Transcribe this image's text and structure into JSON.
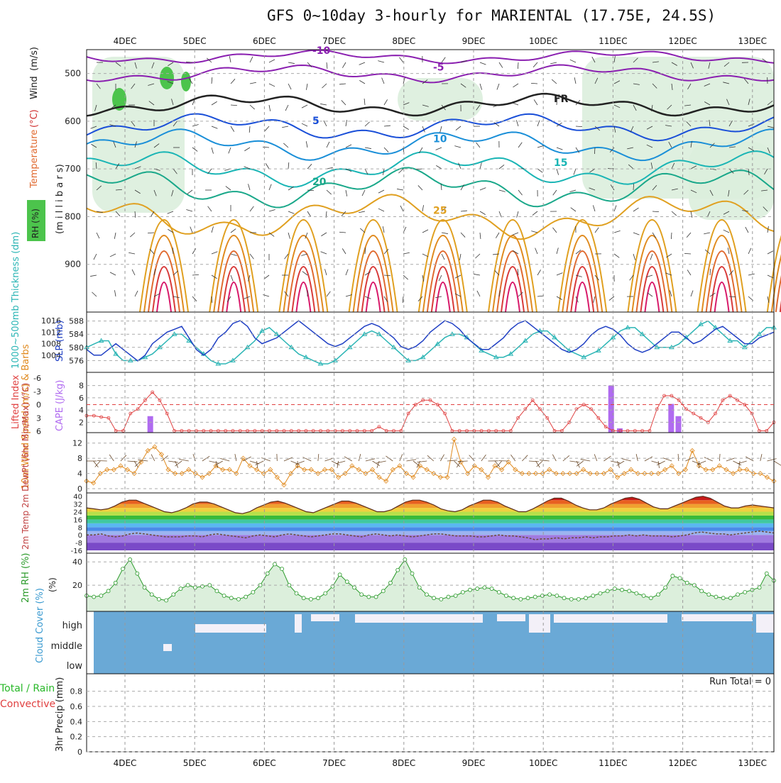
{
  "title": "GFS 0~10day 3-hourly for MARIENTAL (17.75E, 24.5S)",
  "colors": {
    "rh_fill": "#4cc44c",
    "temp_warm": "#e08a1e",
    "temp_cool": "#1a5bd8",
    "thickness": "#2bb5b5",
    "slp": "#1f3fc4",
    "lifted_index": "#e04040",
    "cape": "#b06bf0",
    "wind": "#e08a1e",
    "rh2m": "#2a9a2a",
    "cloud": "#6aa9d6",
    "precip_total": "#29b829",
    "precip_conv": "#e04040"
  },
  "chart_data": [
    {
      "type": "line",
      "name": "upper-air",
      "ylabel_parts": [
        "Temperature",
        "(°C)",
        "Wind",
        "(m/s)"
      ],
      "ylabel2": "(m i l l i b a r s)",
      "rh_label": "RH (%)",
      "categories": [
        "4DEC",
        "5DEC",
        "6DEC",
        "7DEC",
        "8DEC",
        "9DEC",
        "10DEC",
        "11DEC",
        "12DEC",
        "13DEC"
      ],
      "yticks": [
        500,
        600,
        700,
        800,
        900
      ],
      "yticklabels": [
        "500",
        "600",
        "700",
        "800",
        "900"
      ],
      "ylim": [
        1000,
        450
      ],
      "contours": [
        {
          "label": "-10",
          "pressure": 465,
          "color": "#8a1fb0"
        },
        {
          "label": "-5",
          "pressure": 500,
          "color": "#8a1fb0"
        },
        {
          "label": "FR",
          "pressure": 566,
          "color": "#222222"
        },
        {
          "label": "5",
          "pressure": 612,
          "color": "#1a4fd8"
        },
        {
          "label": "10",
          "pressure": 650,
          "color": "#1a8fd8"
        },
        {
          "label": "15",
          "pressure": 700,
          "color": "#1ab5b5"
        },
        {
          "label": "20",
          "pressure": 740,
          "color": "#1aa88a"
        },
        {
          "label": "25",
          "pressure": 800,
          "color": "#e0a020"
        }
      ]
    },
    {
      "type": "line",
      "name": "thickness-slp",
      "ylabel_left": "1000~500mb Thickness (dm)",
      "ylabel_right": "SLP (mb)",
      "yticks_left": [
        "588",
        "584",
        "580",
        "576"
      ],
      "yticks_right": [
        "1016",
        "1012",
        "1008",
        "1004"
      ],
      "series": [
        {
          "name": "thickness",
          "color": "#2bb5b5",
          "values": [
            580,
            581,
            582,
            582,
            578,
            576,
            576,
            576,
            577,
            578,
            580,
            582,
            584,
            584,
            582,
            580,
            578,
            576,
            575,
            575,
            576,
            578,
            580,
            582,
            585,
            586,
            584,
            582,
            580,
            578,
            577,
            576,
            575,
            575,
            576,
            578,
            580,
            582,
            584,
            585,
            584,
            582,
            580,
            578,
            576,
            576,
            577,
            579,
            581,
            583,
            584,
            584,
            583,
            581,
            579,
            578,
            577,
            577,
            578,
            580,
            582,
            584,
            585,
            585,
            583,
            581,
            579,
            578,
            577,
            578,
            579,
            581,
            583,
            585,
            586,
            586,
            584,
            582,
            580,
            580,
            580,
            581,
            583,
            585,
            587,
            588,
            586,
            584,
            582,
            582,
            580,
            582,
            584,
            586,
            586
          ]
        },
        {
          "name": "slp",
          "color": "#1f3fc4",
          "values": [
            1006,
            1004,
            1004,
            1006,
            1008,
            1006,
            1004,
            1002,
            1004,
            1008,
            1010,
            1012,
            1013,
            1014,
            1010,
            1006,
            1004,
            1006,
            1010,
            1012,
            1015,
            1016,
            1014,
            1010,
            1008,
            1009,
            1010,
            1012,
            1014,
            1016,
            1014,
            1012,
            1010,
            1008,
            1007,
            1008,
            1010,
            1012,
            1014,
            1015,
            1014,
            1012,
            1010,
            1007,
            1006,
            1007,
            1009,
            1012,
            1014,
            1016,
            1015,
            1013,
            1010,
            1008,
            1006,
            1006,
            1008,
            1010,
            1013,
            1015,
            1016,
            1014,
            1012,
            1010,
            1008,
            1006,
            1005,
            1006,
            1008,
            1011,
            1013,
            1014,
            1013,
            1011,
            1008,
            1006,
            1005,
            1006,
            1008,
            1010,
            1012,
            1012,
            1010,
            1008,
            1009,
            1011,
            1013,
            1014,
            1012,
            1010,
            1008,
            1008,
            1010,
            1011,
            1012
          ]
        }
      ]
    },
    {
      "type": "bar",
      "name": "cape-li",
      "ylabel_left": "Lifted Index",
      "ylabel_right": "CAPE (J/kg)",
      "yticks_left": [
        "-6",
        "-3",
        "0",
        "3",
        "6"
      ],
      "yticks_right": [
        "8",
        "6",
        "4",
        "2"
      ],
      "cape_bars": [
        {
          "x": 8.8,
          "value": 3
        },
        {
          "x": 72.5,
          "value": 8
        },
        {
          "x": 73.7,
          "value": 1
        },
        {
          "x": 80.8,
          "value": 5
        },
        {
          "x": 81.8,
          "value": 3
        }
      ],
      "lifted_index": [
        2.5,
        2.5,
        2.8,
        3.0,
        6,
        6,
        2,
        1,
        -1,
        -2.8,
        -1,
        2,
        6,
        6,
        6,
        6,
        6,
        6,
        6,
        6,
        6,
        6,
        6,
        6,
        6,
        6,
        6,
        6,
        6,
        6,
        6,
        6,
        6,
        6,
        6,
        6,
        6,
        6,
        6,
        6,
        5,
        6,
        6,
        6,
        2,
        0,
        -1,
        -1,
        0,
        2,
        6,
        6,
        6,
        6,
        6,
        6,
        6,
        6,
        6,
        3,
        1,
        -1,
        1,
        3,
        6,
        6,
        4,
        1,
        0,
        1,
        3,
        5,
        6,
        6,
        6,
        6,
        6,
        6,
        1,
        -2,
        -2,
        -1,
        1,
        2,
        3,
        4,
        2,
        -1,
        -2,
        -1,
        0,
        2,
        6,
        6,
        4
      ]
    },
    {
      "type": "line",
      "name": "wind10m",
      "ylabel": "10m Wind Speed (m/s) & Barbs",
      "yticks": [
        "12",
        "8",
        "4",
        "0"
      ],
      "ylim": [
        0,
        14
      ],
      "values": [
        2,
        1.5,
        4,
        5,
        5,
        6,
        5,
        4,
        7,
        10,
        11,
        9,
        5,
        4,
        4,
        5,
        4,
        3,
        4,
        6,
        5,
        5,
        4,
        8,
        6,
        5,
        4,
        5,
        3,
        1,
        4,
        6,
        5,
        5,
        4,
        5,
        5,
        3,
        4,
        6,
        5,
        4,
        5,
        3,
        2,
        5,
        6,
        4,
        3,
        6,
        5,
        4,
        3,
        3,
        13,
        7,
        4,
        6,
        5,
        3,
        6,
        5,
        7,
        5,
        4,
        4,
        4,
        4,
        5,
        4,
        4,
        4,
        4,
        5,
        4,
        4,
        4,
        5,
        3,
        4,
        5,
        4,
        4,
        4,
        4,
        5,
        6,
        4,
        5,
        10,
        6,
        5,
        5,
        6,
        5,
        4,
        5,
        5,
        4,
        4,
        3,
        2
      ]
    },
    {
      "type": "area",
      "name": "temp2m",
      "ylabel": "2m Temp 2m DewPt (6hr Min/Max) (°C)",
      "yticks": [
        "40",
        "32",
        "24",
        "16",
        "8",
        "0",
        "-8",
        "-16"
      ],
      "ylim": [
        -16,
        42
      ],
      "temp": [
        28,
        27,
        26,
        27,
        30,
        34,
        36,
        36,
        33,
        30,
        27,
        24,
        23,
        25,
        28,
        32,
        34,
        34,
        32,
        29,
        26,
        23,
        22,
        24,
        28,
        31,
        34,
        35,
        33,
        30,
        27,
        24,
        23,
        26,
        29,
        32,
        35,
        35,
        33,
        30,
        27,
        24,
        24,
        26,
        30,
        34,
        36,
        36,
        34,
        31,
        27,
        25,
        24,
        26,
        30,
        33,
        36,
        36,
        34,
        30,
        27,
        24,
        24,
        27,
        31,
        35,
        38,
        38,
        35,
        31,
        28,
        26,
        26,
        28,
        32,
        35,
        38,
        39,
        37,
        33,
        29,
        27,
        27,
        30,
        33,
        36,
        39,
        40,
        38,
        34,
        30,
        28,
        28,
        30,
        31,
        30,
        29,
        28
      ],
      "dewpt": [
        0,
        0,
        1,
        -1,
        -2,
        -1,
        1,
        2,
        1,
        0,
        -1,
        -2,
        -2,
        -2,
        -1,
        -1,
        -2,
        0,
        1,
        0,
        -1,
        -2,
        -3,
        -1,
        0,
        -1,
        -2,
        0,
        1,
        0,
        -1,
        -2,
        -1,
        0,
        1,
        1,
        0,
        -1,
        -2,
        0,
        1,
        0,
        -1,
        0,
        -1,
        -2,
        -1,
        0,
        1,
        1,
        0,
        -1,
        -1,
        -1,
        -2,
        -2,
        -1,
        0,
        -1,
        -1,
        -2,
        -3,
        -5,
        -4,
        -4,
        -3,
        -4,
        -3,
        -3,
        -2,
        -3,
        -2,
        -2,
        -1,
        -1,
        0,
        -1,
        0,
        -1,
        -1,
        -1,
        -2,
        -1,
        0,
        2,
        3,
        2,
        1,
        1,
        0,
        1,
        2,
        3,
        4,
        3,
        2
      ]
    },
    {
      "type": "area",
      "name": "rh2m",
      "ylabel": "2m RH (%)",
      "yticks": [
        "40",
        "20"
      ],
      "ylim": [
        0,
        45
      ],
      "values": [
        11,
        10,
        11,
        15,
        22,
        34,
        42,
        30,
        18,
        12,
        8,
        7,
        12,
        17,
        20,
        18,
        19,
        20,
        15,
        11,
        9,
        8,
        10,
        14,
        20,
        30,
        38,
        34,
        20,
        13,
        9,
        8,
        9,
        13,
        19,
        29,
        23,
        18,
        12,
        10,
        10,
        15,
        22,
        33,
        42,
        30,
        18,
        12,
        9,
        8,
        10,
        11,
        14,
        16,
        17,
        18,
        17,
        14,
        11,
        9,
        8,
        9,
        10,
        11,
        12,
        11,
        9,
        8,
        8,
        9,
        11,
        13,
        15,
        17,
        16,
        15,
        13,
        11,
        9,
        12,
        18,
        28,
        26,
        22,
        20,
        15,
        12,
        10,
        9,
        9,
        12,
        14,
        16,
        18,
        30,
        24
      ]
    },
    {
      "type": "heatmap",
      "name": "cloud",
      "ylabel": "Cloud Cover (%)",
      "yticklabels": [
        "high",
        "middle",
        "low"
      ]
    },
    {
      "type": "bar",
      "name": "precip",
      "ylabel_total": "Total / Rain",
      "ylabel_conv": "Convective",
      "ylabel_unit": "3hr Precip (mm)",
      "yticks": [
        "0.8",
        "0.6",
        "0.4",
        "0.2",
        "0"
      ],
      "ylim": [
        0,
        0.9
      ],
      "run_total": "Run Total = 0",
      "values": []
    }
  ]
}
